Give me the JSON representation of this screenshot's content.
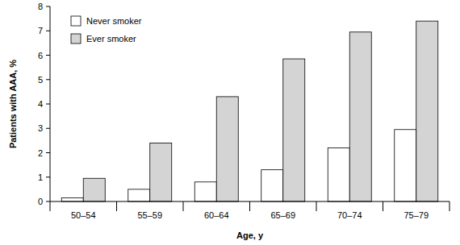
{
  "chart_data": {
    "type": "bar",
    "x_label": "Age, y",
    "y_label": "Patients with AAA, %",
    "categories": [
      "50–54",
      "55–59",
      "60–64",
      "65–69",
      "70–74",
      "75–79"
    ],
    "series": [
      {
        "name": "Never smoker",
        "color": "#ffffff",
        "values": [
          0.15,
          0.5,
          0.8,
          1.3,
          2.2,
          2.95
        ]
      },
      {
        "name": "Ever smoker",
        "color": "#d4d4d4",
        "values": [
          0.95,
          2.4,
          4.3,
          5.85,
          6.95,
          7.4
        ]
      }
    ],
    "ylim": [
      0,
      8
    ],
    "yticks": [
      0,
      1,
      2,
      3,
      4,
      5,
      6,
      7,
      8
    ],
    "grid": false,
    "legend": "upper left"
  }
}
